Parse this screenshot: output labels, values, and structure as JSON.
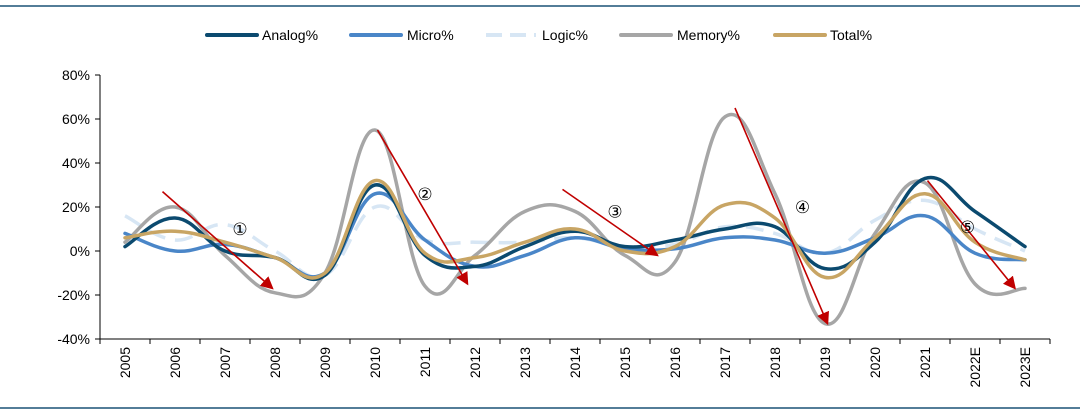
{
  "chart_data": {
    "type": "line",
    "title": "",
    "xlabel": "",
    "ylabel": "",
    "ylim": [
      -40,
      80
    ],
    "yticks": [
      -40,
      -20,
      0,
      20,
      40,
      60,
      80
    ],
    "ytick_labels": [
      "-40%",
      "-20%",
      "0%",
      "20%",
      "40%",
      "60%",
      "80%"
    ],
    "categories": [
      "2005",
      "2006",
      "2007",
      "2008",
      "2009",
      "2010",
      "2011",
      "2012",
      "2013",
      "2014",
      "2015",
      "2016",
      "2017",
      "2018",
      "2019",
      "2020",
      "2021",
      "2022E",
      "2023E"
    ],
    "grid": false,
    "legend_position": "top",
    "series": [
      {
        "name": "Analog%",
        "color": "#0b4a6f",
        "dash": "solid",
        "values": [
          2,
          15,
          0,
          -3,
          -11,
          30,
          -2,
          -7,
          2,
          9,
          2,
          5,
          10,
          11,
          -8,
          4,
          33,
          18,
          2
        ]
      },
      {
        "name": "Micro%",
        "color": "#4a86c8",
        "dash": "solid",
        "values": [
          8,
          0,
          3,
          -3,
          -10,
          26,
          5,
          -7,
          -2,
          6,
          1,
          1,
          6,
          5,
          -1,
          6,
          16,
          -1,
          -4
        ]
      },
      {
        "name": "Logic%",
        "color": "#d7e6f4",
        "dash": "dashed",
        "values": [
          16,
          5,
          12,
          0,
          -11,
          20,
          5,
          4,
          4,
          6,
          2,
          3,
          11,
          8,
          -1,
          14,
          23,
          10,
          0
        ]
      },
      {
        "name": "Memory%",
        "color": "#a6a6a6",
        "dash": "solid",
        "values": [
          4,
          20,
          -2,
          -19,
          -10,
          55,
          -16,
          -2,
          18,
          18,
          -2,
          -5,
          61,
          26,
          -33,
          8,
          31,
          -15,
          -17
        ]
      },
      {
        "name": "Total%",
        "color": "#c8a564",
        "dash": "solid",
        "values": [
          6,
          9,
          4,
          -3,
          -10,
          32,
          -1,
          -3,
          4,
          10,
          0,
          2,
          21,
          15,
          -12,
          6,
          26,
          4,
          -4
        ]
      }
    ],
    "annotations": [
      {
        "label": "①",
        "x": 2.3,
        "y": 10,
        "arrow_from": [
          0.75,
          27
        ],
        "arrow_to": [
          2.95,
          -17
        ]
      },
      {
        "label": "②",
        "x": 6.0,
        "y": 26,
        "arrow_from": [
          5.05,
          55
        ],
        "arrow_to": [
          6.85,
          -15
        ]
      },
      {
        "label": "③",
        "x": 9.8,
        "y": 18,
        "arrow_from": [
          8.75,
          28
        ],
        "arrow_to": [
          10.65,
          -2
        ]
      },
      {
        "label": "④",
        "x": 13.55,
        "y": 20,
        "arrow_from": [
          12.2,
          65
        ],
        "arrow_to": [
          14.05,
          -33
        ]
      },
      {
        "label": "⑤",
        "x": 16.85,
        "y": 11,
        "arrow_from": [
          16.05,
          32
        ],
        "arrow_to": [
          17.8,
          -17
        ]
      }
    ],
    "annotation_color": "#c00000",
    "frame_color": "#1a5276"
  }
}
